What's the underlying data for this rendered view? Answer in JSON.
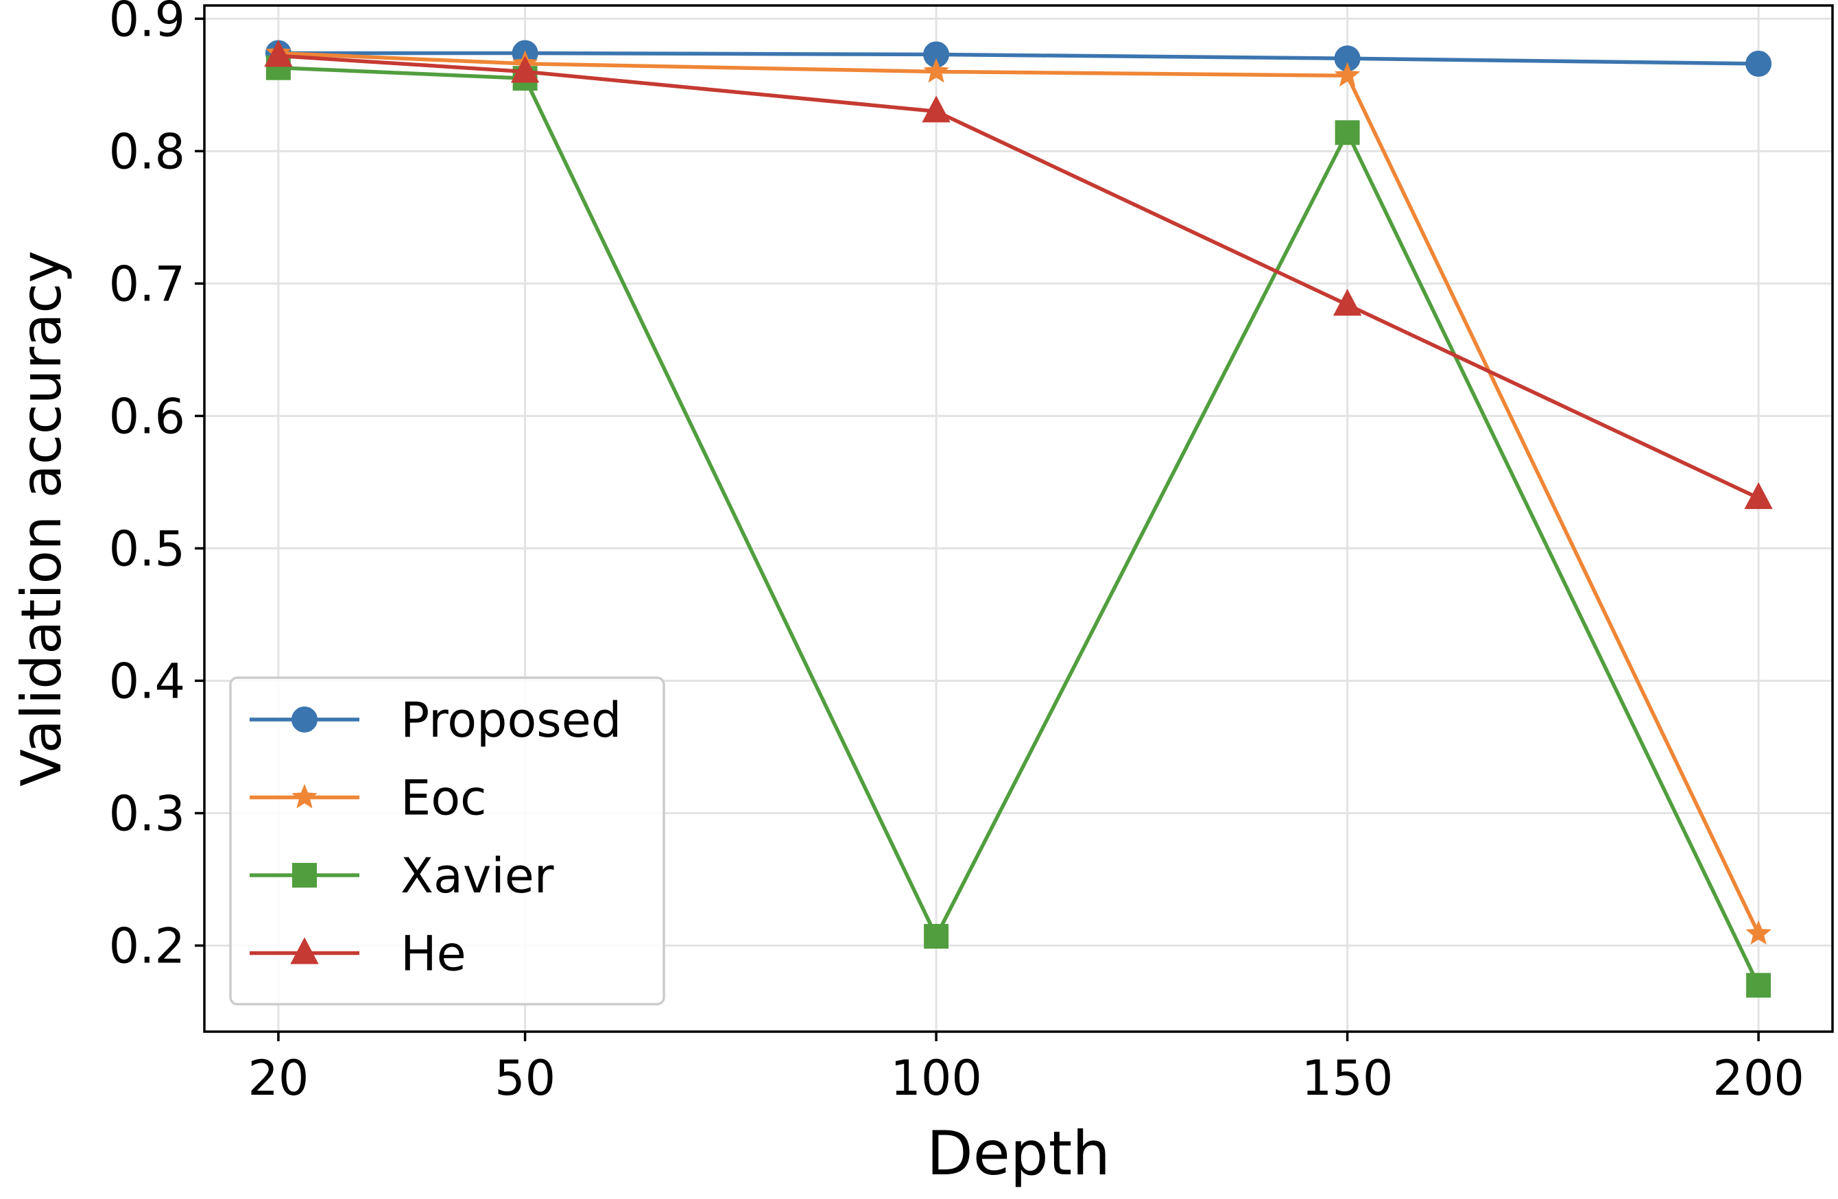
{
  "chart_data": {
    "type": "line",
    "title": "",
    "xlabel": "Depth",
    "ylabel": "Validation accuracy",
    "x": [
      20,
      50,
      100,
      150,
      200
    ],
    "xticks": [
      20,
      50,
      100,
      150,
      200
    ],
    "xtick_labels": [
      "20",
      "50",
      "100",
      "150",
      "200"
    ],
    "yticks": [
      0.2,
      0.3,
      0.4,
      0.5,
      0.6,
      0.7,
      0.8,
      0.9
    ],
    "ytick_labels": [
      "0.2",
      "0.3",
      "0.4",
      "0.5",
      "0.6",
      "0.7",
      "0.8",
      "0.9"
    ],
    "xlim": [
      11,
      209
    ],
    "ylim": [
      0.135,
      0.91
    ],
    "grid": true,
    "legend_position": "lower-left",
    "series": [
      {
        "name": "Proposed",
        "color": "#3b75af",
        "marker": "circle",
        "values": [
          0.874,
          0.874,
          0.873,
          0.87,
          0.866
        ]
      },
      {
        "name": "Eoc",
        "color": "#ef8636",
        "marker": "star",
        "values": [
          0.874,
          0.866,
          0.86,
          0.857,
          0.209
        ]
      },
      {
        "name": "Xavier",
        "color": "#519e3e",
        "marker": "square",
        "values": [
          0.863,
          0.855,
          0.207,
          0.814,
          0.17
        ]
      },
      {
        "name": "He",
        "color": "#c53a32",
        "marker": "triangle",
        "values": [
          0.872,
          0.86,
          0.83,
          0.684,
          0.538
        ]
      }
    ]
  }
}
